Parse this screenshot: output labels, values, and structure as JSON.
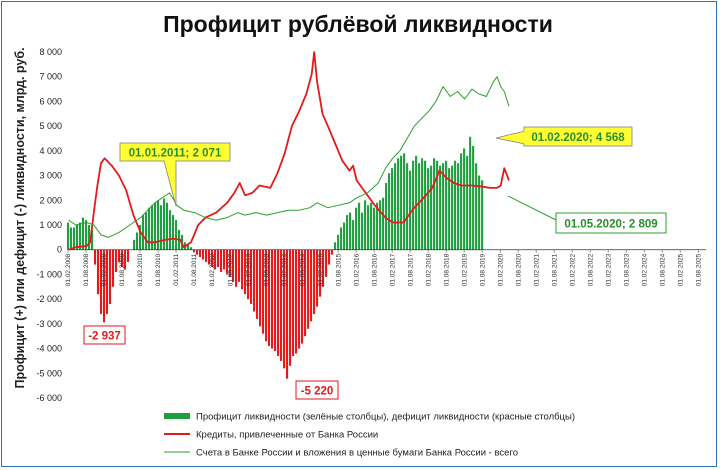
{
  "chart_data": {
    "type": "bar",
    "title": "Профицит рублёвой ликвидности",
    "ylabel": "Профицит (+) или дефицит (-) ликвидности, млрд. руб.",
    "ylim": [
      -6000,
      8000
    ],
    "yticks": [
      "8 000",
      "7 000",
      "6 000",
      "5 000",
      "4 000",
      "3 000",
      "2 000",
      "1 000",
      "0",
      "-1 000",
      "-2 000",
      "-3 000",
      "-4 000",
      "-5 000",
      "-6 000"
    ],
    "ytick_values": [
      8000,
      7000,
      6000,
      5000,
      4000,
      3000,
      2000,
      1000,
      0,
      -1000,
      -2000,
      -3000,
      -4000,
      -5000,
      -6000
    ],
    "xticks": [
      "01.02.2008",
      "01.08.2008",
      "01.02.2009",
      "01.08.2009",
      "01.02.2010",
      "01.08.2010",
      "01.02.2011",
      "01.08.2011",
      "01.02.2012",
      "01.08.2012",
      "01.02.2013",
      "01.08.2013",
      "01.02.2014",
      "01.08.2014",
      "01.02.2015",
      "01.08.2015",
      "01.02.2016",
      "01.08.2016",
      "01.02.2017",
      "01.08.2017",
      "01.02.2018",
      "01.08.2018",
      "01.02.2019",
      "01.08.2019",
      "01.02.2020",
      "01.08.2020",
      "01.02.2021",
      "01.08.2021",
      "01.02.2022",
      "01.08.2022",
      "01.02.2023",
      "01.08.2023",
      "01.02.2024",
      "01.08.2024",
      "01.02.2025",
      "01.08.2025"
    ],
    "bars": {
      "name": "Профицит ликвидности (зелёные столбцы), дефицит ликвидности (красные столбцы)",
      "start": "2008-02",
      "positive_color": "#1e9e3e",
      "negative_color": "#e41a1a",
      "values": [
        1100,
        900,
        900,
        1000,
        1100,
        1300,
        1200,
        1000,
        800,
        -600,
        -1800,
        -2600,
        -2937,
        -2600,
        -2200,
        -1500,
        -900,
        -500,
        -700,
        -800,
        -500,
        0,
        400,
        700,
        1000,
        1400,
        1500,
        1700,
        1800,
        1900,
        2000,
        1800,
        2071,
        1900,
        1600,
        1400,
        1200,
        800,
        600,
        300,
        200,
        100,
        -100,
        -200,
        -300,
        -400,
        -500,
        -600,
        -700,
        -800,
        -700,
        -900,
        -800,
        -1000,
        -1100,
        -1300,
        -1500,
        -1300,
        -1600,
        -1800,
        -2000,
        -2200,
        -2500,
        -2800,
        -3100,
        -3400,
        -3700,
        -3900,
        -4000,
        -4100,
        -4300,
        -4500,
        -4800,
        -5220,
        -4700,
        -4300,
        -4200,
        -4000,
        -3800,
        -3500,
        -3200,
        -2900,
        -2600,
        -2300,
        -1900,
        -1500,
        -1100,
        -600,
        -200,
        300,
        600,
        900,
        1100,
        1400,
        1500,
        1200,
        1700,
        1900,
        1500,
        2000,
        1800,
        1900,
        1700,
        1900,
        2000,
        2100,
        2700,
        3100,
        3300,
        3500,
        3700,
        3800,
        3900,
        3500,
        3200,
        3600,
        3800,
        3500,
        3700,
        3600,
        3300,
        3400,
        3700,
        3600,
        3400,
        3500,
        3600,
        3300,
        3400,
        3600,
        3500,
        3900,
        4100,
        3800,
        4568,
        4200,
        3500,
        3000,
        2809
      ]
    },
    "lines": [
      {
        "name": "Кредиты, привлеченные от Банка России",
        "color": "#e41a1a",
        "points": [
          [
            2008.1,
            0
          ],
          [
            2008.3,
            100
          ],
          [
            2008.6,
            150
          ],
          [
            2008.7,
            300
          ],
          [
            2008.8,
            1500
          ],
          [
            2008.9,
            2600
          ],
          [
            2009.0,
            3500
          ],
          [
            2009.1,
            3700
          ],
          [
            2009.3,
            3400
          ],
          [
            2009.5,
            3000
          ],
          [
            2009.7,
            2400
          ],
          [
            2009.9,
            1400
          ],
          [
            2010.1,
            700
          ],
          [
            2010.3,
            300
          ],
          [
            2010.5,
            300
          ],
          [
            2010.8,
            400
          ],
          [
            2011.0,
            450
          ],
          [
            2011.2,
            400
          ],
          [
            2011.3,
            100
          ],
          [
            2011.5,
            300
          ],
          [
            2011.7,
            1000
          ],
          [
            2011.9,
            1300
          ],
          [
            2012.2,
            1500
          ],
          [
            2012.5,
            1900
          ],
          [
            2012.7,
            2300
          ],
          [
            2012.85,
            2700
          ],
          [
            2013.0,
            2200
          ],
          [
            2013.2,
            2300
          ],
          [
            2013.4,
            2600
          ],
          [
            2013.7,
            2500
          ],
          [
            2013.9,
            3100
          ],
          [
            2014.1,
            3900
          ],
          [
            2014.3,
            5000
          ],
          [
            2014.5,
            5600
          ],
          [
            2014.7,
            6300
          ],
          [
            2014.85,
            7100
          ],
          [
            2014.92,
            8000
          ],
          [
            2015.0,
            6800
          ],
          [
            2015.15,
            5500
          ],
          [
            2015.3,
            5000
          ],
          [
            2015.5,
            4300
          ],
          [
            2015.7,
            3600
          ],
          [
            2015.9,
            3200
          ],
          [
            2016.0,
            3400
          ],
          [
            2016.1,
            2800
          ],
          [
            2016.3,
            2400
          ],
          [
            2016.6,
            1800
          ],
          [
            2016.9,
            1300
          ],
          [
            2017.1,
            1100
          ],
          [
            2017.4,
            1100
          ],
          [
            2017.7,
            1700
          ],
          [
            2017.9,
            2000
          ],
          [
            2018.2,
            2500
          ],
          [
            2018.4,
            3200
          ],
          [
            2018.6,
            2900
          ],
          [
            2018.8,
            2700
          ],
          [
            2019.0,
            2600
          ],
          [
            2019.3,
            2600
          ],
          [
            2019.6,
            2550
          ],
          [
            2019.8,
            2500
          ],
          [
            2020.0,
            2500
          ],
          [
            2020.1,
            2600
          ],
          [
            2020.2,
            3300
          ],
          [
            2020.33,
            2800
          ]
        ]
      },
      {
        "name": "Счета в Банке России и вложения в ценные бумаги Банка России - всего",
        "color": "#2ca02c",
        "points": [
          [
            2008.1,
            1200
          ],
          [
            2008.3,
            1000
          ],
          [
            2008.6,
            1100
          ],
          [
            2008.8,
            1000
          ],
          [
            2009.0,
            600
          ],
          [
            2009.2,
            500
          ],
          [
            2009.5,
            700
          ],
          [
            2009.7,
            900
          ],
          [
            2009.9,
            1100
          ],
          [
            2010.1,
            1300
          ],
          [
            2010.3,
            1600
          ],
          [
            2010.5,
            1900
          ],
          [
            2010.7,
            2100
          ],
          [
            2010.9,
            2300
          ],
          [
            2011.0,
            2071
          ],
          [
            2011.1,
            1800
          ],
          [
            2011.3,
            1600
          ],
          [
            2011.6,
            1500
          ],
          [
            2011.9,
            1300
          ],
          [
            2012.2,
            1200
          ],
          [
            2012.5,
            1300
          ],
          [
            2012.8,
            1500
          ],
          [
            2013.0,
            1400
          ],
          [
            2013.3,
            1500
          ],
          [
            2013.6,
            1400
          ],
          [
            2013.9,
            1500
          ],
          [
            2014.2,
            1600
          ],
          [
            2014.5,
            1600
          ],
          [
            2014.8,
            1700
          ],
          [
            2015.0,
            1900
          ],
          [
            2015.3,
            1700
          ],
          [
            2015.6,
            1800
          ],
          [
            2015.9,
            1900
          ],
          [
            2016.1,
            2100
          ],
          [
            2016.4,
            2300
          ],
          [
            2016.7,
            2700
          ],
          [
            2016.9,
            3300
          ],
          [
            2017.1,
            3700
          ],
          [
            2017.3,
            4000
          ],
          [
            2017.5,
            4500
          ],
          [
            2017.7,
            5000
          ],
          [
            2017.9,
            5300
          ],
          [
            2018.1,
            5600
          ],
          [
            2018.3,
            6000
          ],
          [
            2018.5,
            6600
          ],
          [
            2018.7,
            6200
          ],
          [
            2018.9,
            6400
          ],
          [
            2019.1,
            6100
          ],
          [
            2019.3,
            6500
          ],
          [
            2019.5,
            6300
          ],
          [
            2019.7,
            6200
          ],
          [
            2019.9,
            6800
          ],
          [
            2020.0,
            7000
          ],
          [
            2020.1,
            6600
          ],
          [
            2020.2,
            6400
          ],
          [
            2020.33,
            5800
          ]
        ]
      }
    ],
    "annotations": [
      {
        "text": "01.01.2011; 2 071",
        "style": "yellow"
      },
      {
        "text": "01.02.2020; 4 568",
        "style": "yellow"
      },
      {
        "text": "01.05.2020; 2 809",
        "style": "white-green"
      },
      {
        "text": "-2 937",
        "style": "white-red"
      },
      {
        "text": "-5 220",
        "style": "white-red"
      }
    ],
    "grid": false,
    "legend_position": "bottom"
  }
}
